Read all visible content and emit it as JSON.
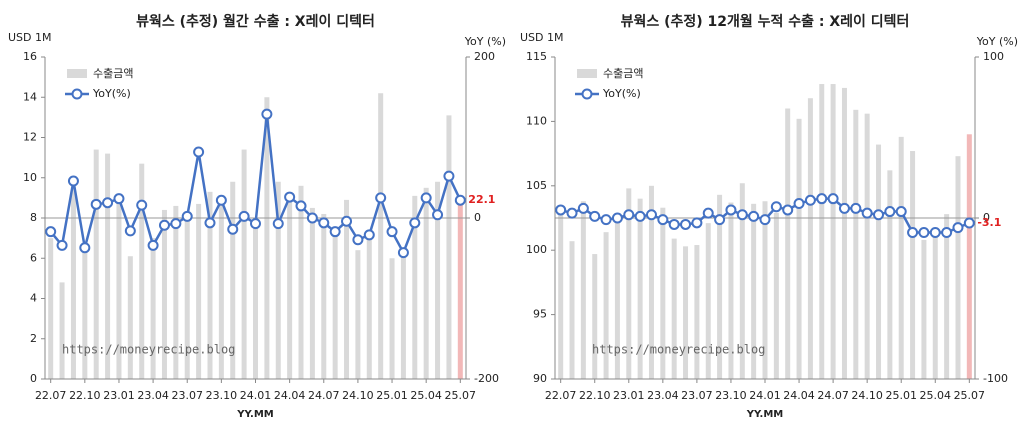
{
  "chart_data": [
    {
      "type": "bar_line",
      "title": "뷰웍스 (추정) 월간 수출 : X레이 디텍터",
      "y_label": "USD 1M",
      "y2_label": "YoY (%)",
      "x_label": "YY.MM",
      "watermark": "https://moneyrecipe.blog",
      "categories": [
        "22.07",
        null,
        null,
        "22.10",
        null,
        null,
        "23.01",
        null,
        null,
        "23.04",
        null,
        null,
        "23.07",
        null,
        null,
        "23.10",
        null,
        null,
        "24.01",
        null,
        null,
        "24.04",
        null,
        null,
        "24.07",
        null,
        null,
        "24.10",
        null,
        null,
        "25.01",
        null,
        null,
        "25.04",
        null,
        null,
        "25.07"
      ],
      "series": [
        {
          "name": "수출금액",
          "color": "#d9d9d9",
          "highlight_color": "#f2b8b8",
          "values": [
            7.0,
            4.8,
            9.5,
            6.5,
            11.4,
            11.2,
            8.8,
            6.1,
            10.7,
            7.0,
            8.4,
            8.6,
            8.1,
            8.7,
            9.3,
            8.8,
            9.8,
            11.4,
            8.0,
            14.0,
            9.8,
            9.0,
            9.6,
            8.5,
            8.2,
            7.3,
            8.9,
            6.4,
            7.2,
            14.2,
            6.0,
            6.5,
            9.1,
            9.5,
            9.8,
            13.1,
            8.9
          ]
        },
        {
          "name": "YoY(%)",
          "color": "#4472c4",
          "axis": "y2",
          "values": [
            -17,
            -34,
            46,
            -37,
            17,
            19,
            24,
            -16,
            16,
            -34,
            -9,
            -7,
            2,
            82,
            -6,
            22,
            -14,
            2,
            -7,
            129,
            -7,
            26,
            15,
            0,
            -6,
            -17,
            -4,
            -27,
            -21,
            25,
            -17,
            -43,
            -6,
            25,
            4,
            52,
            22.1
          ],
          "value_labels": [
            null,
            null,
            null,
            null,
            null,
            null,
            null,
            null,
            null,
            null,
            null,
            null,
            null,
            null,
            null,
            null,
            null,
            null,
            null,
            null,
            null,
            null,
            null,
            null,
            null,
            null,
            null,
            null,
            null,
            null,
            null,
            null,
            null,
            null,
            null,
            null,
            "22.1"
          ],
          "label_color": "#e02020"
        }
      ],
      "ylim": [
        0,
        16
      ],
      "yticks": [
        0,
        2,
        4,
        6,
        8,
        10,
        12,
        14,
        16
      ],
      "y2lim": [
        -200,
        200
      ],
      "y2ticks": [
        -200,
        0,
        200
      ],
      "zero_line": true,
      "legend": "upper left"
    },
    {
      "type": "bar_line",
      "title": "뷰웍스 (추정) 12개월 누적 수출 : X레이 디텍터",
      "y_label": "USD 1M",
      "y2_label": "YoY (%)",
      "x_label": "YY.MM",
      "watermark": "https://moneyrecipe.blog",
      "categories": [
        "22.07",
        null,
        null,
        "22.10",
        null,
        null,
        "23.01",
        null,
        null,
        "23.04",
        null,
        null,
        "23.07",
        null,
        null,
        "23.10",
        null,
        null,
        "24.01",
        null,
        null,
        "24.04",
        null,
        null,
        "24.07",
        null,
        null,
        "24.10",
        null,
        null,
        "25.01",
        null,
        null,
        "25.04",
        null,
        null,
        "25.07"
      ],
      "series": [
        {
          "name": "수출금액",
          "color": "#d9d9d9",
          "highlight_color": "#f2b8b8",
          "values": [
            102.9,
            100.7,
            103.8,
            99.7,
            101.4,
            102.6,
            104.8,
            104.0,
            105.0,
            103.3,
            100.9,
            100.3,
            100.4,
            102.1,
            104.3,
            103.7,
            105.2,
            103.6,
            103.8,
            102.9,
            111.0,
            110.2,
            111.8,
            112.9,
            112.9,
            112.6,
            110.9,
            110.6,
            108.2,
            106.2,
            108.8,
            107.7,
            100.8,
            101.5,
            102.8,
            107.3,
            109.0
          ]
        },
        {
          "name": "YoY(%)",
          "color": "#4472c4",
          "axis": "y2",
          "values": [
            5,
            3,
            6,
            1,
            -1,
            0,
            2,
            1,
            2,
            -1,
            -4,
            -4,
            -3,
            3,
            -1,
            5,
            2,
            1,
            -1,
            7,
            5,
            9,
            11,
            12,
            12,
            6,
            6,
            3,
            2,
            4,
            4,
            -9,
            -9,
            -9,
            -9,
            -6,
            -3.1
          ],
          "value_labels": [
            null,
            null,
            null,
            null,
            null,
            null,
            null,
            null,
            null,
            null,
            null,
            null,
            null,
            null,
            null,
            null,
            null,
            null,
            null,
            null,
            null,
            null,
            null,
            null,
            null,
            null,
            null,
            null,
            null,
            null,
            null,
            null,
            null,
            null,
            null,
            null,
            "-3.1"
          ],
          "label_color": "#e02020"
        }
      ],
      "ylim": [
        90,
        115
      ],
      "yticks": [
        90,
        95,
        100,
        105,
        110,
        115
      ],
      "y2lim": [
        -100,
        100
      ],
      "y2ticks": [
        -100,
        0,
        100
      ],
      "zero_line": true,
      "legend": "upper left"
    }
  ]
}
